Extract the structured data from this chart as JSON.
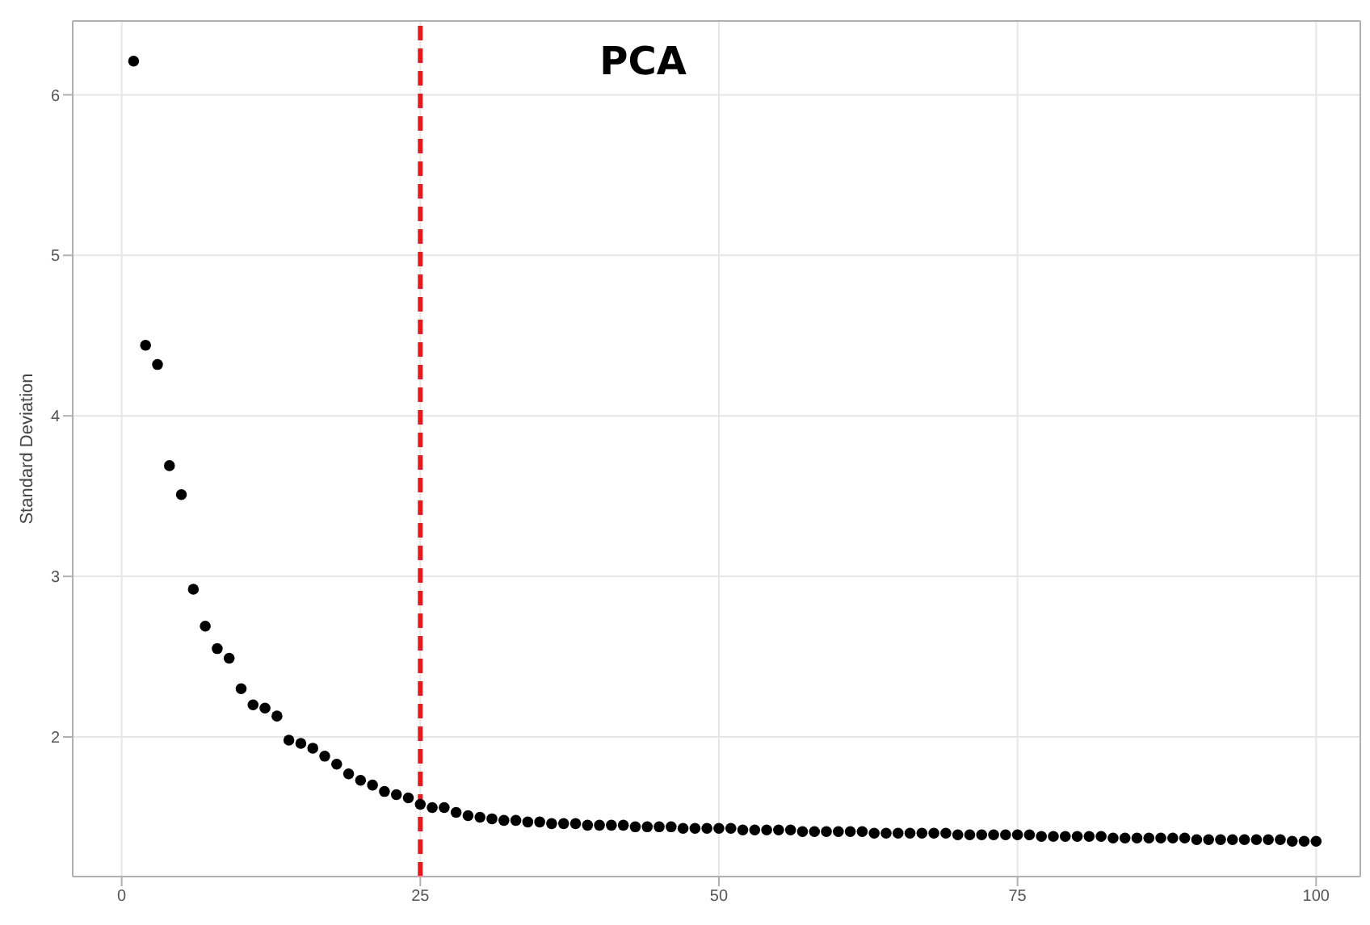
{
  "chart_data": {
    "type": "scatter",
    "title": "PCA",
    "ylabel": "Standard Deviation",
    "x": [
      1,
      2,
      3,
      4,
      5,
      6,
      7,
      8,
      9,
      10,
      11,
      12,
      13,
      14,
      15,
      16,
      17,
      18,
      19,
      20,
      21,
      22,
      23,
      24,
      25,
      26,
      27,
      28,
      29,
      30,
      31,
      32,
      33,
      34,
      35,
      36,
      37,
      38,
      39,
      40,
      41,
      42,
      43,
      44,
      45,
      46,
      47,
      48,
      49,
      50,
      51,
      52,
      53,
      54,
      55,
      56,
      57,
      58,
      59,
      60,
      61,
      62,
      63,
      64,
      65,
      66,
      67,
      68,
      69,
      70,
      71,
      72,
      73,
      74,
      75,
      76,
      77,
      78,
      79,
      80,
      81,
      82,
      83,
      84,
      85,
      86,
      87,
      88,
      89,
      90,
      91,
      92,
      93,
      94,
      95,
      96,
      97,
      98,
      99,
      100
    ],
    "values": [
      6.21,
      4.44,
      4.32,
      3.69,
      3.51,
      2.92,
      2.69,
      2.55,
      2.49,
      2.3,
      2.2,
      2.18,
      2.13,
      1.98,
      1.96,
      1.93,
      1.88,
      1.83,
      1.77,
      1.73,
      1.7,
      1.66,
      1.64,
      1.62,
      1.58,
      1.56,
      1.56,
      1.53,
      1.51,
      1.5,
      1.49,
      1.48,
      1.48,
      1.47,
      1.47,
      1.46,
      1.46,
      1.46,
      1.45,
      1.45,
      1.45,
      1.45,
      1.44,
      1.44,
      1.44,
      1.44,
      1.43,
      1.43,
      1.43,
      1.43,
      1.43,
      1.42,
      1.42,
      1.42,
      1.42,
      1.42,
      1.41,
      1.41,
      1.41,
      1.41,
      1.41,
      1.41,
      1.4,
      1.4,
      1.4,
      1.4,
      1.4,
      1.4,
      1.4,
      1.39,
      1.39,
      1.39,
      1.39,
      1.39,
      1.39,
      1.39,
      1.38,
      1.38,
      1.38,
      1.38,
      1.38,
      1.38,
      1.37,
      1.37,
      1.37,
      1.37,
      1.37,
      1.37,
      1.37,
      1.36,
      1.36,
      1.36,
      1.36,
      1.36,
      1.36,
      1.36,
      1.36,
      1.35,
      1.35,
      1.35
    ],
    "color": "#000000",
    "marker": "circle",
    "xlim": [
      -4.1,
      103.7
    ],
    "ylim": [
      1.13,
      6.46
    ],
    "xticks": [
      0,
      25,
      50,
      75,
      100
    ],
    "yticks": [
      2,
      3,
      4,
      5,
      6
    ],
    "grid": true,
    "ref_lines": [
      {
        "axis": "x",
        "value": 25,
        "color": "#e41a1c",
        "line_style": "dashed"
      }
    ]
  }
}
